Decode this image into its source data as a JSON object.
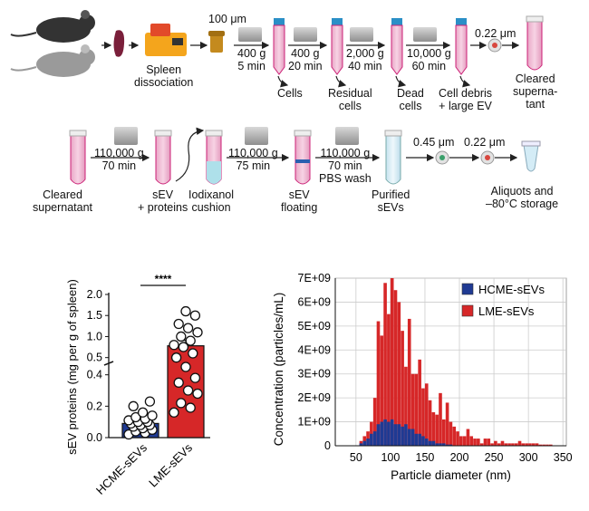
{
  "workflow": {
    "row1": {
      "filter_100": "100 μm",
      "spleen_dissociation": [
        "Spleen",
        "dissociation"
      ],
      "spin1": [
        "400 g",
        "5 min"
      ],
      "spin2": [
        "400 g",
        "20 min"
      ],
      "spin3": [
        "2,000 g",
        "40 min"
      ],
      "spin4": [
        "10,000 g",
        "60 min"
      ],
      "filter_022": "0.22 μm",
      "cells": "Cells",
      "residual_cells": [
        "Residual",
        "cells"
      ],
      "dead_cells": [
        "Dead",
        "cells"
      ],
      "cell_debris": [
        "Cell debris",
        "+ large EV"
      ],
      "cleared_supernatant": [
        "Cleared",
        "superna-",
        "tant"
      ]
    },
    "row2": {
      "cleared_supernatant": [
        "Cleared",
        "supernatant"
      ],
      "spin1": [
        "110,000 g",
        "70 min"
      ],
      "sev_proteins": [
        "sEV",
        "+ proteins"
      ],
      "iodixanol": [
        "Iodixanol",
        "cushion"
      ],
      "spin2": [
        "110,000 g",
        "75 min"
      ],
      "sev_floating": [
        "sEV",
        "floating"
      ],
      "spin3": [
        "110,000 g",
        "70 min",
        "PBS wash"
      ],
      "purified": [
        "Purified",
        "sEVs"
      ],
      "filter_045": "0.45 μm",
      "filter_022": "0.22 μm",
      "aliquots": [
        "Aliquots and",
        "–80°C storage"
      ]
    }
  },
  "chart_data": [
    {
      "type": "bar",
      "ylabel": "sEV proteins (mg per g of spleen)",
      "categories": [
        "HCME-sEVs",
        "LME-sEVs"
      ],
      "values": [
        0.09,
        0.78
      ],
      "significance": "****",
      "yticks_lower": [
        "0.0",
        "0.2",
        "0.4"
      ],
      "yticks_upper": [
        "0.5",
        "1.0",
        "1.5",
        "2.0"
      ],
      "ylim_lower": [
        0,
        0.45
      ],
      "ylim_upper": [
        0.45,
        2.0
      ],
      "colors": [
        "#1f3a93",
        "#d62728"
      ],
      "points": [
        [
          0.02,
          0.03,
          0.04,
          0.05,
          0.06,
          0.07,
          0.08,
          0.08,
          0.09,
          0.1,
          0.1,
          0.11,
          0.12,
          0.13,
          0.14,
          0.16,
          0.2,
          0.23
        ],
        [
          0.16,
          0.19,
          0.22,
          0.28,
          0.3,
          0.35,
          0.38,
          0.45,
          0.5,
          0.6,
          0.75,
          0.8,
          0.9,
          1.0,
          1.1,
          1.2,
          1.3,
          1.5,
          1.6
        ]
      ]
    },
    {
      "type": "bar",
      "xlabel": "Particle diameter (nm)",
      "ylabel": "Concentration (particles/mL)",
      "xlim": [
        20,
        355
      ],
      "ylim": [
        0,
        7000000000
      ],
      "xticks": [
        "50",
        "100",
        "150",
        "200",
        "250",
        "300",
        "350"
      ],
      "yticks": [
        "0",
        "1E+09",
        "2E+09",
        "3E+09",
        "4E+09",
        "5E+09",
        "6E+09",
        "7E+09"
      ],
      "legend_position": "top-right",
      "bin_start": 55,
      "bin_width": 5,
      "series": [
        {
          "name": "HCME-sEVs",
          "color": "#1f3a93",
          "values": [
            0.1,
            0.2,
            0.3,
            0.5,
            0.6,
            0.9,
            1.0,
            1.1,
            1.0,
            1.1,
            0.9,
            0.9,
            0.8,
            0.9,
            0.7,
            0.7,
            0.5,
            0.5,
            0.4,
            0.3,
            0.2,
            0.2,
            0.1,
            0.1,
            0.1,
            0.05,
            0.05,
            0,
            0,
            0,
            0,
            0,
            0,
            0,
            0,
            0,
            0,
            0,
            0,
            0,
            0,
            0,
            0,
            0,
            0,
            0,
            0,
            0,
            0,
            0,
            0,
            0,
            0,
            0,
            0,
            0
          ]
        },
        {
          "name": "LME-sEVs",
          "color": "#d62728",
          "values": [
            0.2,
            0.4,
            0.6,
            1.0,
            2.0,
            5.2,
            4.6,
            6.8,
            5.5,
            7.0,
            6.5,
            6.0,
            4.8,
            3.3,
            5.3,
            3.0,
            3.0,
            3.6,
            2.4,
            2.6,
            1.9,
            1.4,
            1.3,
            2.2,
            1.1,
            1.8,
            1.0,
            0.8,
            0.6,
            0.4,
            0.4,
            0.7,
            0.4,
            0.3,
            0.3,
            0.1,
            0.3,
            0.3,
            0.1,
            0.2,
            0.1,
            0.2,
            0.1,
            0.1,
            0.1,
            0.1,
            0.2,
            0.1,
            0.1,
            0.1,
            0.1,
            0.1,
            0.05,
            0.05,
            0.05,
            0.05
          ]
        }
      ]
    }
  ]
}
